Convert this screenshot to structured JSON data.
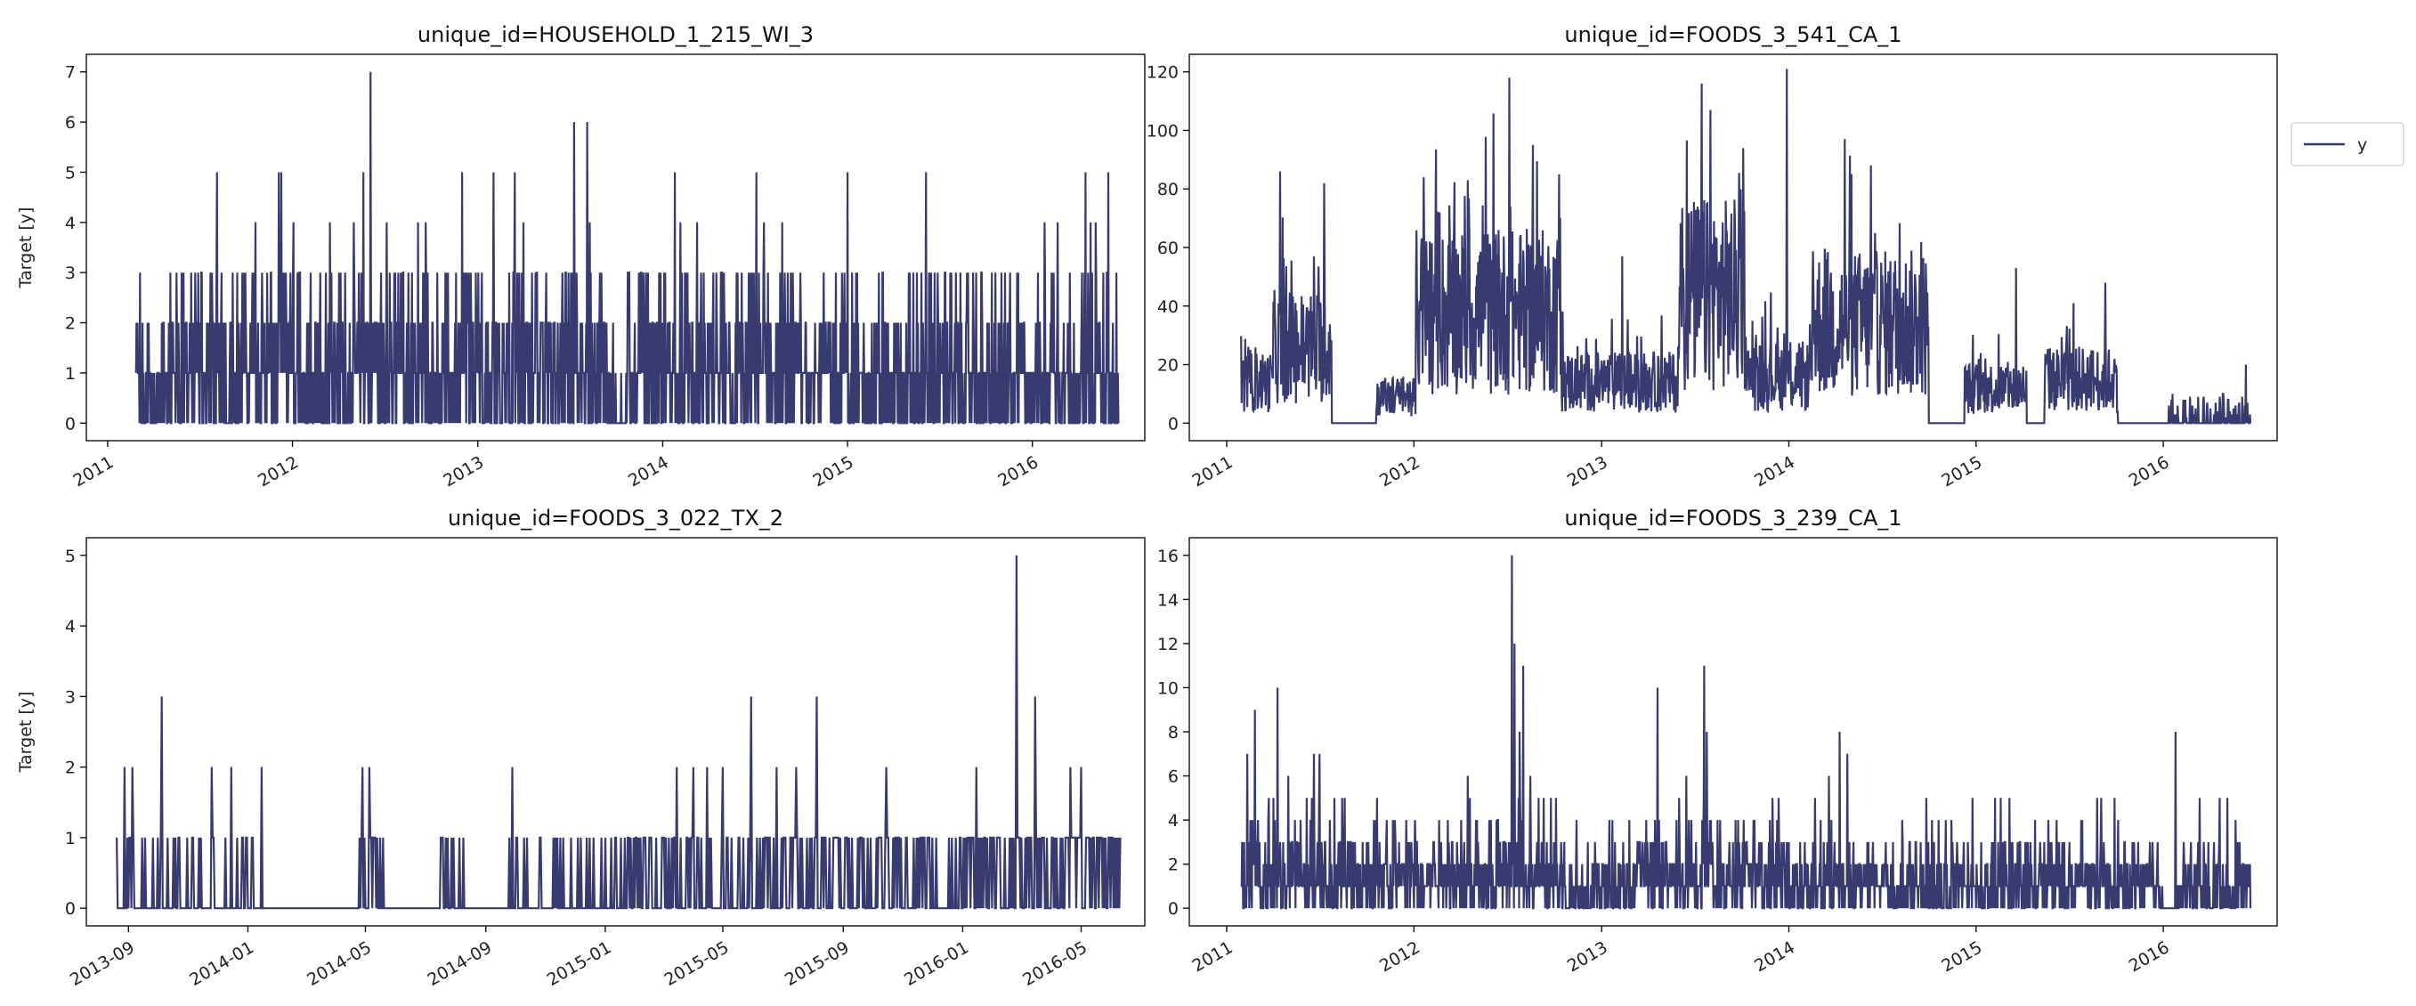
{
  "legend": {
    "label": "y",
    "placement": "outside-top-right"
  },
  "colors": {
    "series": "#383b70",
    "frame": "#111111"
  },
  "chart_data": [
    {
      "type": "line",
      "title": "unique_id=HOUSEHOLD_1_215_WI_3",
      "ylabel": "Target [y]",
      "xlabel": "",
      "xlim": [
        "2010-11-20",
        "2016-08-10"
      ],
      "ylim": [
        -0.35,
        7.35
      ],
      "xticks": [
        {
          "date": "2011-01-01",
          "label": "2011"
        },
        {
          "date": "2012-01-01",
          "label": "2012"
        },
        {
          "date": "2013-01-01",
          "label": "2013"
        },
        {
          "date": "2014-01-01",
          "label": "2014"
        },
        {
          "date": "2015-01-01",
          "label": "2015"
        },
        {
          "date": "2016-01-01",
          "label": "2016"
        }
      ],
      "yticks": [
        0,
        1,
        2,
        3,
        4,
        5,
        6,
        7
      ],
      "series": [
        {
          "name": "y",
          "kind": "count",
          "start": "2011-02-26",
          "end": "2016-06-19",
          "cap": 3,
          "level_segments": [
            [
              "2011-02-26",
              "2011-05-01",
              0.6
            ],
            [
              "2011-05-01",
              "2013-10-01",
              1.2
            ],
            [
              "2013-10-01",
              "2013-10-20",
              0.1
            ],
            [
              "2013-10-20",
              "2016-06-19",
              1.0
            ]
          ],
          "peaks": [
            [
              "2011-08-05",
              5
            ],
            [
              "2011-10-20",
              4
            ],
            [
              "2011-12-05",
              5
            ],
            [
              "2011-12-10",
              5
            ],
            [
              "2012-01-03",
              4
            ],
            [
              "2012-03-15",
              4
            ],
            [
              "2012-05-01",
              4
            ],
            [
              "2012-05-20",
              5
            ],
            [
              "2012-06-03",
              7
            ],
            [
              "2012-07-05",
              4
            ],
            [
              "2012-09-05",
              4
            ],
            [
              "2012-09-20",
              4
            ],
            [
              "2012-12-01",
              5
            ],
            [
              "2013-02-01",
              5
            ],
            [
              "2013-03-15",
              5
            ],
            [
              "2013-04-01",
              4
            ],
            [
              "2013-07-10",
              6
            ],
            [
              "2013-08-05",
              6
            ],
            [
              "2013-08-10",
              4
            ],
            [
              "2014-01-25",
              5
            ],
            [
              "2014-02-05",
              4
            ],
            [
              "2014-03-10",
              4
            ],
            [
              "2014-07-05",
              5
            ],
            [
              "2014-07-20",
              4
            ],
            [
              "2014-08-25",
              4
            ],
            [
              "2015-01-01",
              5
            ],
            [
              "2015-06-05",
              5
            ],
            [
              "2016-01-25",
              4
            ],
            [
              "2016-02-20",
              4
            ],
            [
              "2016-04-15",
              5
            ],
            [
              "2016-04-25",
              4
            ],
            [
              "2016-05-05",
              4
            ],
            [
              "2016-05-30",
              5
            ]
          ]
        }
      ]
    },
    {
      "type": "line",
      "title": "unique_id=FOODS_3_541_CA_1",
      "ylabel": "",
      "xlabel": "",
      "xlim": [
        "2010-10-20",
        "2016-08-10"
      ],
      "ylim": [
        -6,
        126
      ],
      "xticks": [
        {
          "date": "2011-01-01",
          "label": "2011"
        },
        {
          "date": "2012-01-01",
          "label": "2012"
        },
        {
          "date": "2013-01-01",
          "label": "2013"
        },
        {
          "date": "2014-01-01",
          "label": "2014"
        },
        {
          "date": "2015-01-01",
          "label": "2015"
        },
        {
          "date": "2016-01-01",
          "label": "2016"
        }
      ],
      "yticks": [
        0,
        20,
        40,
        60,
        80,
        100,
        120
      ],
      "series": [
        {
          "name": "y",
          "kind": "continuous",
          "start": "2011-01-29",
          "end": "2016-06-19",
          "level_segments": [
            [
              "2011-01-29",
              "2011-04-01",
              14
            ],
            [
              "2011-04-01",
              "2011-07-25",
              26
            ],
            [
              "2011-07-25",
              "2011-10-20",
              0
            ],
            [
              "2011-10-20",
              "2012-01-05",
              9
            ],
            [
              "2012-01-05",
              "2012-10-15",
              38
            ],
            [
              "2012-10-15",
              "2013-06-01",
              14
            ],
            [
              "2013-06-01",
              "2013-10-10",
              44
            ],
            [
              "2013-10-10",
              "2014-02-15",
              16
            ],
            [
              "2014-02-15",
              "2014-10-01",
              34
            ],
            [
              "2014-10-01",
              "2014-12-10",
              0
            ],
            [
              "2014-12-10",
              "2015-04-10",
              12
            ],
            [
              "2015-04-10",
              "2015-05-15",
              0
            ],
            [
              "2015-05-15",
              "2015-10-05",
              15
            ],
            [
              "2015-10-05",
              "2016-01-10",
              0
            ],
            [
              "2016-01-10",
              "2016-06-19",
              2
            ]
          ],
          "peaks": [
            [
              "2011-04-15",
              86
            ],
            [
              "2011-06-20",
              57
            ],
            [
              "2011-07-10",
              82
            ],
            [
              "2012-01-20",
              84
            ],
            [
              "2012-04-15",
              83
            ],
            [
              "2012-07-05",
              118
            ],
            [
              "2012-08-20",
              95
            ],
            [
              "2012-10-10",
              85
            ],
            [
              "2013-02-10",
              57
            ],
            [
              "2013-07-15",
              116
            ],
            [
              "2013-08-01",
              107
            ],
            [
              "2013-12-28",
              121
            ],
            [
              "2014-04-20",
              97
            ],
            [
              "2014-06-10",
              88
            ],
            [
              "2015-03-20",
              53
            ],
            [
              "2015-09-10",
              48
            ],
            [
              "2015-07-10",
              41
            ],
            [
              "2016-06-10",
              20
            ]
          ]
        }
      ]
    },
    {
      "type": "line",
      "title": "unique_id=FOODS_3_022_TX_2",
      "ylabel": "Target [y]",
      "xlabel": "",
      "xlim": [
        "2013-07-20",
        "2016-07-05"
      ],
      "ylim": [
        -0.25,
        5.25
      ],
      "xticks": [
        {
          "date": "2013-09-01",
          "label": "2013-09"
        },
        {
          "date": "2014-01-01",
          "label": "2014-01"
        },
        {
          "date": "2014-05-01",
          "label": "2014-05"
        },
        {
          "date": "2014-09-01",
          "label": "2014-09"
        },
        {
          "date": "2015-01-01",
          "label": "2015-01"
        },
        {
          "date": "2015-05-01",
          "label": "2015-05"
        },
        {
          "date": "2015-09-01",
          "label": "2015-09"
        },
        {
          "date": "2016-01-01",
          "label": "2016-01"
        },
        {
          "date": "2016-05-01",
          "label": "2016-05"
        }
      ],
      "yticks": [
        0,
        1,
        2,
        3,
        4,
        5
      ],
      "series": [
        {
          "name": "y",
          "kind": "count",
          "start": "2013-08-20",
          "end": "2016-06-10",
          "cap": 1,
          "level_segments": [
            [
              "2013-08-20",
              "2013-10-20",
              0.35
            ],
            [
              "2013-10-20",
              "2014-01-25",
              0.2
            ],
            [
              "2014-01-25",
              "2014-04-25",
              0
            ],
            [
              "2014-04-25",
              "2014-05-20",
              0.5
            ],
            [
              "2014-05-20",
              "2014-07-15",
              0
            ],
            [
              "2014-07-15",
              "2014-08-10",
              0.3
            ],
            [
              "2014-08-10",
              "2014-09-25",
              0
            ],
            [
              "2014-09-25",
              "2015-01-01",
              0.25
            ],
            [
              "2015-01-01",
              "2015-06-01",
              0.4
            ],
            [
              "2015-06-01",
              "2016-06-10",
              0.6
            ]
          ],
          "peaks": [
            [
              "2013-08-28",
              2
            ],
            [
              "2013-09-05",
              2
            ],
            [
              "2013-10-05",
              3
            ],
            [
              "2013-11-25",
              2
            ],
            [
              "2013-12-15",
              2
            ],
            [
              "2014-01-15",
              2
            ],
            [
              "2014-04-28",
              2
            ],
            [
              "2014-05-05",
              2
            ],
            [
              "2014-09-28",
              2
            ],
            [
              "2015-03-15",
              2
            ],
            [
              "2015-04-01",
              2
            ],
            [
              "2015-04-15",
              2
            ],
            [
              "2015-05-01",
              2
            ],
            [
              "2015-05-30",
              3
            ],
            [
              "2015-06-25",
              2
            ],
            [
              "2015-07-15",
              2
            ],
            [
              "2015-08-05",
              3
            ],
            [
              "2015-10-15",
              2
            ],
            [
              "2016-01-15",
              2
            ],
            [
              "2016-02-25",
              5
            ],
            [
              "2016-03-15",
              3
            ],
            [
              "2016-04-20",
              2
            ],
            [
              "2016-05-01",
              2
            ]
          ]
        }
      ]
    },
    {
      "type": "line",
      "title": "unique_id=FOODS_3_239_CA_1",
      "ylabel": "",
      "xlabel": "",
      "xlim": [
        "2010-10-20",
        "2016-08-10"
      ],
      "ylim": [
        -0.8,
        16.8
      ],
      "xticks": [
        {
          "date": "2011-01-01",
          "label": "2011"
        },
        {
          "date": "2012-01-01",
          "label": "2012"
        },
        {
          "date": "2013-01-01",
          "label": "2013"
        },
        {
          "date": "2014-01-01",
          "label": "2014"
        },
        {
          "date": "2015-01-01",
          "label": "2015"
        },
        {
          "date": "2016-01-01",
          "label": "2016"
        }
      ],
      "yticks": [
        0,
        2,
        4,
        6,
        8,
        10,
        12,
        14,
        16
      ],
      "series": [
        {
          "name": "y",
          "kind": "count",
          "start": "2011-01-29",
          "end": "2016-06-19",
          "cap": 5,
          "level_segments": [
            [
              "2011-01-29",
              "2012-10-20",
              1.6
            ],
            [
              "2012-10-20",
              "2013-03-01",
              1.0
            ],
            [
              "2013-03-01",
              "2014-01-01",
              1.6
            ],
            [
              "2014-01-01",
              "2016-01-01",
              1.2
            ],
            [
              "2016-01-01",
              "2016-01-25",
              0
            ],
            [
              "2016-01-25",
              "2016-06-19",
              1.0
            ]
          ],
          "peaks": [
            [
              "2011-02-10",
              7
            ],
            [
              "2011-02-25",
              9
            ],
            [
              "2011-04-10",
              10
            ],
            [
              "2011-05-01",
              6
            ],
            [
              "2011-06-20",
              7
            ],
            [
              "2011-07-01",
              7
            ],
            [
              "2012-04-15",
              6
            ],
            [
              "2012-07-10",
              16
            ],
            [
              "2012-07-15",
              12
            ],
            [
              "2012-07-25",
              8
            ],
            [
              "2012-08-01",
              11
            ],
            [
              "2012-08-15",
              6
            ],
            [
              "2013-04-20",
              10
            ],
            [
              "2013-06-15",
              6
            ],
            [
              "2013-07-20",
              11
            ],
            [
              "2013-07-25",
              8
            ],
            [
              "2014-03-20",
              6
            ],
            [
              "2014-04-10",
              8
            ],
            [
              "2014-04-25",
              7
            ],
            [
              "2016-01-25",
              8
            ],
            [
              "2016-04-20",
              5
            ],
            [
              "2016-05-05",
              5
            ]
          ]
        }
      ]
    }
  ]
}
